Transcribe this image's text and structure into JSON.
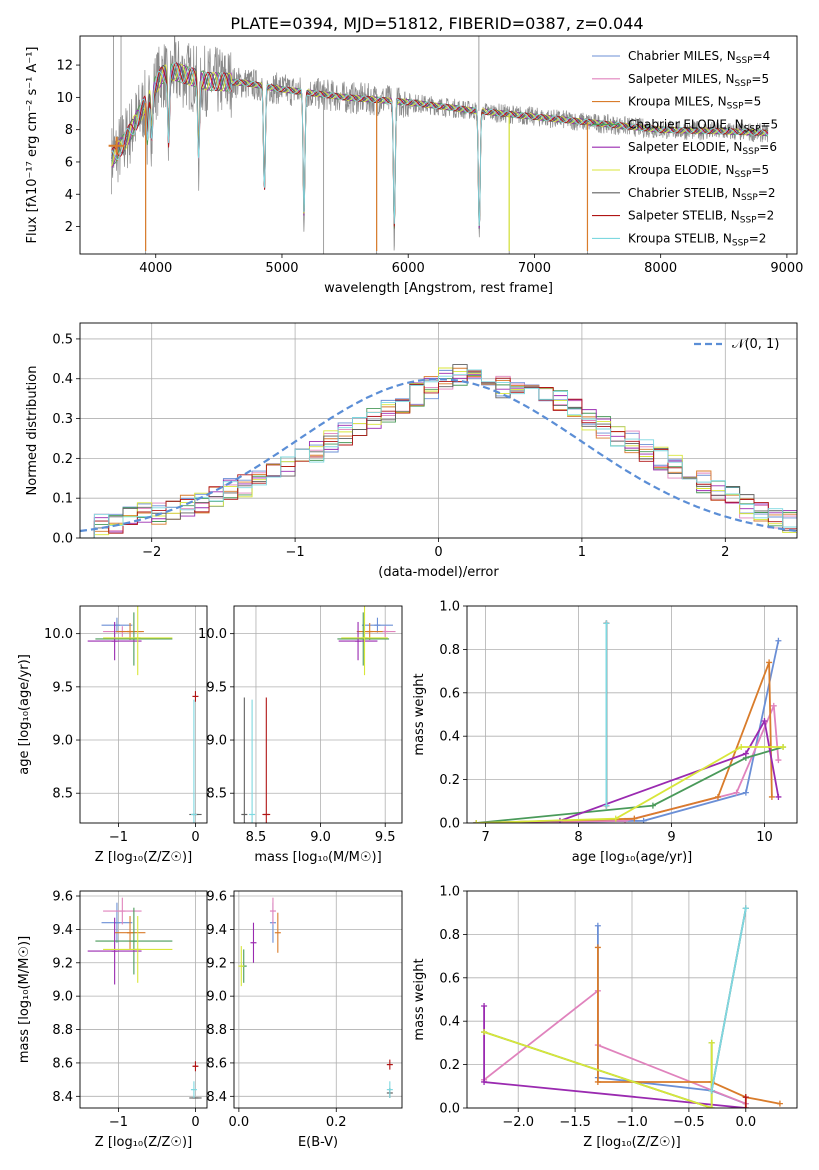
{
  "title": "PLATE=0394, MJD=51812, FIBERID=0387, z=0.044",
  "colors": {
    "chabrier_miles": "#6b8fd6",
    "salpeter_miles": "#e083bd",
    "kroupa_miles": "#d97c2b",
    "chabrier_elodie": "#4a9a5a",
    "salpeter_elodie": "#9a2ab0",
    "kroupa_elodie": "#d8e63a",
    "chabrier_stelib": "#606060",
    "salpeter_stelib": "#b01515",
    "kroupa_stelib": "#7ed8e0",
    "normal_fit": "#5b8ed6",
    "grid": "#b0b0b0"
  },
  "chart_data": [
    {
      "id": "spectrum",
      "type": "line",
      "xlabel": "wavelength [Angstrom, rest frame]",
      "ylabel": "Flux [fλ10⁻¹⁷ erg cm⁻² s⁻¹ A⁻¹]",
      "xlim": [
        3400,
        9080
      ],
      "ylim": [
        0.3,
        13.8
      ],
      "xticks": [
        4000,
        5000,
        6000,
        7000,
        8000,
        9000
      ],
      "yticks": [
        2,
        4,
        6,
        8,
        10,
        12
      ],
      "grid": false,
      "legend_position": "top-right",
      "legend": [
        {
          "label": "Chabrier MILES, N",
          "sub": "SSP",
          "tail": "=4",
          "color_key": "chabrier_miles"
        },
        {
          "label": "Salpeter MILES, N",
          "sub": "SSP",
          "tail": "=5",
          "color_key": "salpeter_miles"
        },
        {
          "label": "Kroupa MILES, N",
          "sub": "SSP",
          "tail": "=5",
          "color_key": "kroupa_miles"
        },
        {
          "label": "Chabrier ELODIE, N",
          "sub": "SSP",
          "tail": "=5",
          "color_key": "chabrier_elodie"
        },
        {
          "label": "Salpeter ELODIE, N",
          "sub": "SSP",
          "tail": "=6",
          "color_key": "salpeter_elodie"
        },
        {
          "label": "Kroupa ELODIE, N",
          "sub": "SSP",
          "tail": "=5",
          "color_key": "kroupa_elodie"
        },
        {
          "label": "Chabrier STELIB, N",
          "sub": "SSP",
          "tail": "=2",
          "color_key": "chabrier_stelib"
        },
        {
          "label": "Salpeter STELIB, N",
          "sub": "SSP",
          "tail": "=2",
          "color_key": "salpeter_stelib"
        },
        {
          "label": "Kroupa STELIB, N",
          "sub": "SSP",
          "tail": "=2",
          "color_key": "kroupa_stelib"
        }
      ],
      "continuum": [
        [
          3650,
          6.2
        ],
        [
          3750,
          7.2
        ],
        [
          3850,
          8.6
        ],
        [
          3950,
          10.1
        ],
        [
          4050,
          11.4
        ],
        [
          4150,
          11.6
        ],
        [
          4400,
          11.0
        ],
        [
          4700,
          10.9
        ],
        [
          5000,
          10.5
        ],
        [
          5500,
          10.0
        ],
        [
          6000,
          9.7
        ],
        [
          6500,
          9.2
        ],
        [
          7000,
          8.8
        ],
        [
          7500,
          8.4
        ],
        [
          8000,
          8.0
        ],
        [
          8500,
          7.9
        ],
        [
          8850,
          7.8
        ]
      ],
      "obs_x_range": [
        3650,
        8850
      ],
      "model_x_range": [
        3650,
        8850
      ],
      "absorption_dips": [
        [
          3934,
          2.5
        ],
        [
          3969,
          2.8
        ],
        [
          4102,
          4.5
        ],
        [
          4340,
          5.0
        ],
        [
          4861,
          7.0
        ],
        [
          5175,
          8.4
        ],
        [
          5890,
          8.6
        ],
        [
          6563,
          8.0
        ]
      ],
      "spikes_low": [
        3920,
        5330,
        5750,
        6800,
        7420
      ],
      "spikes_high": [
        3665,
        3725,
        6560
      ]
    },
    {
      "id": "residuals",
      "type": "histogram",
      "xlabel": "(data-model)/error",
      "ylabel": "Normed distribution",
      "xlim": [
        -2.5,
        2.5
      ],
      "ylim": [
        0,
        0.54
      ],
      "xticks": [
        -2,
        -1,
        0,
        1,
        2
      ],
      "yticks": [
        0.0,
        0.1,
        0.2,
        0.3,
        0.4,
        0.5
      ],
      "grid": true,
      "legend_position": "top-right",
      "normal_label": "𝒩(0, 1)",
      "bin_width": 0.1,
      "x_start": -2.5,
      "base_profile": [
        0.02,
        0.03,
        0.04,
        0.05,
        0.06,
        0.06,
        0.07,
        0.08,
        0.09,
        0.1,
        0.12,
        0.13,
        0.15,
        0.16,
        0.18,
        0.2,
        0.22,
        0.24,
        0.26,
        0.28,
        0.3,
        0.32,
        0.34,
        0.36,
        0.38,
        0.4,
        0.41,
        0.4,
        0.39,
        0.38,
        0.37,
        0.36,
        0.35,
        0.34,
        0.32,
        0.3,
        0.28,
        0.26,
        0.24,
        0.22,
        0.2,
        0.18,
        0.16,
        0.14,
        0.12,
        0.1,
        0.08,
        0.06,
        0.05,
        0.04
      ]
    },
    {
      "id": "age_vs_Z",
      "type": "scatter",
      "xlabel": "Z [log₁₀(Z/Z☉)]",
      "ylabel": "age  [log₁₀(age/yr)]",
      "xlim": [
        -1.5,
        0.15
      ],
      "ylim": [
        8.22,
        10.26
      ],
      "xticks": [
        -1,
        0
      ],
      "yticks": [
        8.5,
        9.0,
        9.5,
        10.0
      ],
      "grid": true,
      "points": [
        {
          "x": -1.02,
          "y": 10.08,
          "xe": 0.2,
          "ye": 0.07,
          "color_key": "chabrier_miles"
        },
        {
          "x": -0.95,
          "y": 10.02,
          "xe": 0.25,
          "ye": 0.05,
          "color_key": "salpeter_miles"
        },
        {
          "x": -0.85,
          "y": 10.02,
          "xe": 0.18,
          "ye": 0.08,
          "color_key": "kroupa_miles"
        },
        {
          "x": -0.8,
          "y": 9.95,
          "xe": 0.5,
          "ye": 0.25,
          "color_key": "chabrier_elodie"
        },
        {
          "x": -1.05,
          "y": 9.93,
          "xe": 0.35,
          "ye": 0.18,
          "color_key": "salpeter_elodie"
        },
        {
          "x": -0.75,
          "y": 9.96,
          "xe": 0.45,
          "ye": 0.35,
          "color_key": "kroupa_elodie"
        },
        {
          "x": 0.0,
          "y": 8.3,
          "xe": 0.08,
          "ye": 0.0,
          "color_key": "chabrier_stelib"
        },
        {
          "x": 0.0,
          "y": 9.41,
          "xe": 0.0,
          "ye": 0.05,
          "color_key": "salpeter_stelib"
        },
        {
          "x": -0.02,
          "y": 8.3,
          "xe": 0.0,
          "ye": 1.08,
          "color_key": "kroupa_stelib"
        }
      ]
    },
    {
      "id": "age_vs_mass",
      "type": "scatter",
      "xlabel": "mass [log₁₀(M/M☉)]",
      "ylabel": "",
      "xlim": [
        8.33,
        9.63
      ],
      "ylim": [
        8.22,
        10.26
      ],
      "xticks": [
        8.5,
        9.0,
        9.5
      ],
      "yticks": [
        8.5,
        9.0,
        9.5,
        10.0
      ],
      "grid": true,
      "points": [
        {
          "x": 9.44,
          "y": 10.08,
          "xe": 0.12,
          "ye": 0.07,
          "color_key": "chabrier_miles"
        },
        {
          "x": 9.5,
          "y": 10.02,
          "xe": 0.08,
          "ye": 0.05,
          "color_key": "salpeter_miles"
        },
        {
          "x": 9.38,
          "y": 10.02,
          "xe": 0.1,
          "ye": 0.08,
          "color_key": "kroupa_miles"
        },
        {
          "x": 9.33,
          "y": 9.95,
          "xe": 0.2,
          "ye": 0.25,
          "color_key": "chabrier_elodie"
        },
        {
          "x": 9.29,
          "y": 9.93,
          "xe": 0.15,
          "ye": 0.18,
          "color_key": "salpeter_elodie"
        },
        {
          "x": 9.34,
          "y": 9.96,
          "xe": 0.18,
          "ye": 0.35,
          "color_key": "kroupa_elodie"
        },
        {
          "x": 8.41,
          "y": 8.3,
          "xe": 0.0,
          "ye": 1.1,
          "color_key": "chabrier_stelib"
        },
        {
          "x": 8.58,
          "y": 8.3,
          "xe": 0.03,
          "ye": 1.1,
          "color_key": "salpeter_stelib"
        },
        {
          "x": 8.47,
          "y": 8.3,
          "xe": 0.0,
          "ye": 1.08,
          "color_key": "kroupa_stelib"
        }
      ]
    },
    {
      "id": "mass_weight_vs_age",
      "type": "line",
      "xlabel": "age  [log₁₀(age/yr)]",
      "ylabel": "mass weight",
      "xlim": [
        6.8,
        10.35
      ],
      "ylim": [
        0,
        1.0
      ],
      "xticks": [
        7,
        8,
        9,
        10
      ],
      "yticks": [
        0.0,
        0.2,
        0.4,
        0.6,
        0.8,
        1.0
      ],
      "grid": true,
      "series": [
        {
          "color_key": "chabrier_miles",
          "x": [
            6.9,
            8.7,
            9.8,
            10.15
          ],
          "y": [
            0.0,
            0.01,
            0.14,
            0.84
          ]
        },
        {
          "color_key": "salpeter_miles",
          "x": [
            6.9,
            8.5,
            9.7,
            10.1,
            10.15
          ],
          "y": [
            0.0,
            0.01,
            0.14,
            0.54,
            0.29
          ]
        },
        {
          "color_key": "kroupa_miles",
          "x": [
            6.9,
            8.6,
            9.5,
            10.05,
            10.08
          ],
          "y": [
            0.0,
            0.02,
            0.12,
            0.74,
            0.12
          ]
        },
        {
          "color_key": "chabrier_elodie",
          "x": [
            6.9,
            8.8,
            9.8,
            10.2
          ],
          "y": [
            0.0,
            0.08,
            0.3,
            0.35
          ]
        },
        {
          "color_key": "salpeter_elodie",
          "x": [
            6.9,
            7.8,
            9.8,
            10.0,
            10.15
          ],
          "y": [
            0.0,
            0.01,
            0.32,
            0.47,
            0.12
          ]
        },
        {
          "color_key": "kroupa_elodie",
          "x": [
            6.9,
            8.4,
            9.75,
            10.2
          ],
          "y": [
            0.0,
            0.02,
            0.35,
            0.35
          ]
        },
        {
          "color_key": "chabrier_stelib",
          "x": [
            8.3,
            8.3
          ],
          "y": [
            0.08,
            0.92
          ]
        },
        {
          "color_key": "salpeter_stelib",
          "x": [
            8.3,
            8.3
          ],
          "y": [
            0.08,
            0.92
          ]
        },
        {
          "color_key": "kroupa_stelib",
          "x": [
            8.3,
            8.3
          ],
          "y": [
            0.08,
            0.92
          ]
        }
      ]
    },
    {
      "id": "mass_vs_Z",
      "type": "scatter",
      "xlabel": "Z [log₁₀(Z/Z☉)]",
      "ylabel": "mass [log₁₀(M/M☉)]",
      "xlim": [
        -1.5,
        0.15
      ],
      "ylim": [
        8.33,
        9.63
      ],
      "xticks": [
        -1,
        0
      ],
      "yticks": [
        8.4,
        8.6,
        8.8,
        9.0,
        9.2,
        9.4,
        9.6
      ],
      "grid": true,
      "points": [
        {
          "x": -1.02,
          "y": 9.44,
          "xe": 0.2,
          "ye": 0.12,
          "color_key": "chabrier_miles"
        },
        {
          "x": -0.95,
          "y": 9.51,
          "xe": 0.25,
          "ye": 0.08,
          "color_key": "salpeter_miles"
        },
        {
          "x": -0.85,
          "y": 9.38,
          "xe": 0.2,
          "ye": 0.1,
          "color_key": "kroupa_miles"
        },
        {
          "x": -0.8,
          "y": 9.33,
          "xe": 0.5,
          "ye": 0.2,
          "color_key": "chabrier_elodie"
        },
        {
          "x": -1.05,
          "y": 9.27,
          "xe": 0.35,
          "ye": 0.2,
          "color_key": "salpeter_elodie"
        },
        {
          "x": -0.75,
          "y": 9.28,
          "xe": 0.45,
          "ye": 0.2,
          "color_key": "kroupa_elodie"
        },
        {
          "x": 0.0,
          "y": 8.39,
          "xe": 0.08,
          "ye": 0.0,
          "color_key": "chabrier_stelib"
        },
        {
          "x": 0.0,
          "y": 8.58,
          "xe": 0.03,
          "ye": 0.03,
          "color_key": "salpeter_stelib"
        },
        {
          "x": -0.02,
          "y": 8.44,
          "xe": 0.0,
          "ye": 0.05,
          "color_key": "kroupa_stelib"
        }
      ]
    },
    {
      "id": "mass_vs_ebv",
      "type": "scatter",
      "xlabel": "E(B-V)",
      "ylabel": "",
      "xlim": [
        -0.01,
        0.335
      ],
      "ylim": [
        8.33,
        9.63
      ],
      "xticks": [
        0.0,
        0.2
      ],
      "yticks": [
        8.4,
        8.6,
        8.8,
        9.0,
        9.2,
        9.4,
        9.6
      ],
      "grid": true,
      "points": [
        {
          "x": 0.07,
          "y": 9.44,
          "xe": 0.0,
          "ye": 0.12,
          "color_key": "chabrier_miles"
        },
        {
          "x": 0.07,
          "y": 9.51,
          "xe": 0.0,
          "ye": 0.08,
          "color_key": "salpeter_miles"
        },
        {
          "x": 0.08,
          "y": 9.38,
          "xe": 0.0,
          "ye": 0.12,
          "color_key": "kroupa_miles"
        },
        {
          "x": 0.01,
          "y": 9.18,
          "xe": 0.0,
          "ye": 0.1,
          "color_key": "chabrier_elodie"
        },
        {
          "x": 0.03,
          "y": 9.32,
          "xe": 0.0,
          "ye": 0.12,
          "color_key": "salpeter_elodie"
        },
        {
          "x": 0.005,
          "y": 9.18,
          "xe": 0.0,
          "ye": 0.12,
          "color_key": "kroupa_elodie"
        },
        {
          "x": 0.31,
          "y": 8.42,
          "xe": 0.0,
          "ye": 0.03,
          "color_key": "chabrier_stelib"
        },
        {
          "x": 0.31,
          "y": 8.59,
          "xe": 0.0,
          "ye": 0.03,
          "color_key": "salpeter_stelib"
        },
        {
          "x": 0.31,
          "y": 8.44,
          "xe": 0.0,
          "ye": 0.05,
          "color_key": "kroupa_stelib"
        }
      ]
    },
    {
      "id": "mass_weight_vs_Z",
      "type": "line",
      "xlabel": "Z [log₁₀(Z/Z☉)]",
      "ylabel": "mass weight",
      "xlim": [
        -2.45,
        0.45
      ],
      "ylim": [
        0,
        1.0
      ],
      "xticks": [
        -2.0,
        -1.5,
        -1.0,
        -0.5,
        0.0
      ],
      "yticks": [
        0.0,
        0.2,
        0.4,
        0.6,
        0.8,
        1.0
      ],
      "grid": true,
      "series": [
        {
          "color_key": "chabrier_miles",
          "x": [
            -1.3,
            -1.3,
            -0.3,
            0.0
          ],
          "y": [
            0.84,
            0.14,
            0.08,
            0.02
          ]
        },
        {
          "color_key": "salpeter_miles",
          "x": [
            -2.3,
            -1.3,
            -1.3,
            0.0
          ],
          "y": [
            0.13,
            0.54,
            0.29,
            0.02
          ]
        },
        {
          "color_key": "kroupa_miles",
          "x": [
            -1.3,
            -1.3,
            -0.3,
            0.0,
            0.3
          ],
          "y": [
            0.74,
            0.12,
            0.12,
            0.05,
            0.02
          ]
        },
        {
          "color_key": "chabrier_elodie",
          "x": [
            -2.3,
            -0.3,
            -0.3
          ],
          "y": [
            0.35,
            0.0,
            0.3
          ]
        },
        {
          "color_key": "salpeter_elodie",
          "x": [
            -2.3,
            -2.3,
            0.0
          ],
          "y": [
            0.47,
            0.12,
            0.0
          ]
        },
        {
          "color_key": "kroupa_elodie",
          "x": [
            -2.3,
            -0.3,
            -0.3
          ],
          "y": [
            0.35,
            0.0,
            0.3
          ]
        },
        {
          "color_key": "chabrier_stelib",
          "x": [
            -0.3,
            0.0
          ],
          "y": [
            0.08,
            0.92
          ]
        },
        {
          "color_key": "salpeter_stelib",
          "x": [
            0.0,
            0.0
          ],
          "y": [
            0.0,
            0.05
          ]
        },
        {
          "color_key": "kroupa_stelib",
          "x": [
            -0.3,
            0.0
          ],
          "y": [
            0.08,
            0.92
          ]
        }
      ]
    }
  ]
}
